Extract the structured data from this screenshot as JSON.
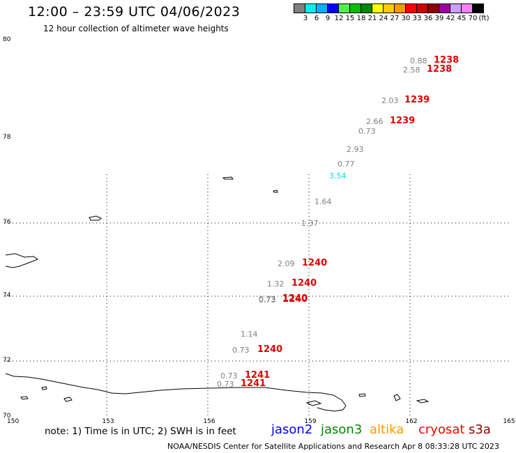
{
  "title": "12:00 – 23:59 UTC 04/06/2023",
  "subtitle": "12 hour collection of altimeter wave heights",
  "legend": {
    "colors": [
      "#808080",
      "#00f0f0",
      "#00b0ff",
      "#0000ff",
      "#50f050",
      "#00c000",
      "#008800",
      "#ffff00",
      "#ffcc00",
      "#ff9900",
      "#ff0000",
      "#d00000",
      "#900000",
      "#a000a0",
      "#c8a0ff",
      "#ff80ff",
      "#000000"
    ],
    "ticks": [
      "3",
      "6",
      "9",
      "12",
      "15",
      "18",
      "21",
      "24",
      "27",
      "30",
      "33",
      "36",
      "39",
      "42",
      "45",
      "70",
      "(ft)"
    ]
  },
  "lat_labels": [
    "80",
    "78",
    "76",
    "74",
    "72",
    "70"
  ],
  "lon_labels": [
    "150",
    "153",
    "156",
    "159",
    "162",
    "165"
  ],
  "observations": [
    {
      "swh": "0.88",
      "time": "1238",
      "color": "#808080"
    },
    {
      "swh": "2.58",
      "time": "1238",
      "color": "#808080"
    },
    {
      "swh": "2.03",
      "time": "1239",
      "color": "#808080"
    },
    {
      "swh": "2.66",
      "time": "1239",
      "color": "#808080"
    },
    {
      "swh": "0.73",
      "time": "",
      "color": "#808080"
    },
    {
      "swh": "2.93",
      "time": "",
      "color": "#808080"
    },
    {
      "swh": "0.77",
      "time": "",
      "color": "#808080"
    },
    {
      "swh": "3.54",
      "time": "",
      "color": "#00e0e0"
    },
    {
      "swh": "1.64",
      "time": "",
      "color": "#808080"
    },
    {
      "swh": "1.37",
      "time": "",
      "color": "#808080"
    },
    {
      "swh": "2.09",
      "time": "1240",
      "color": "#808080"
    },
    {
      "swh": "1.32",
      "time": "1240",
      "color": "#808080"
    },
    {
      "swh": "0.73",
      "time": "1240",
      "color": "#808080"
    },
    {
      "swh": "0.73",
      "time": "1240",
      "color": "#808080"
    },
    {
      "swh": "1.14",
      "time": "",
      "color": "#808080"
    },
    {
      "swh": "0.73",
      "time": "1240",
      "color": "#808080"
    },
    {
      "swh": "0.73",
      "time": "1241",
      "color": "#808080"
    },
    {
      "swh": "0.73",
      "time": "1241",
      "color": "#808080"
    }
  ],
  "note": "note:  1) Time is in UTC; 2) SWH is in feet",
  "satellites": [
    {
      "name": "jason2",
      "color": "#0000ff"
    },
    {
      "name": "jason3",
      "color": "#008800"
    },
    {
      "name": "altika",
      "color": "#ff9900"
    },
    {
      "name": "cryosat",
      "color": "#ff0000"
    },
    {
      "name": "s3a",
      "color": "#900000"
    }
  ],
  "credit": "NOAA/NESDIS Center for Satellite Applications and Research    Apr  8 08:33:28 UTC 2023"
}
